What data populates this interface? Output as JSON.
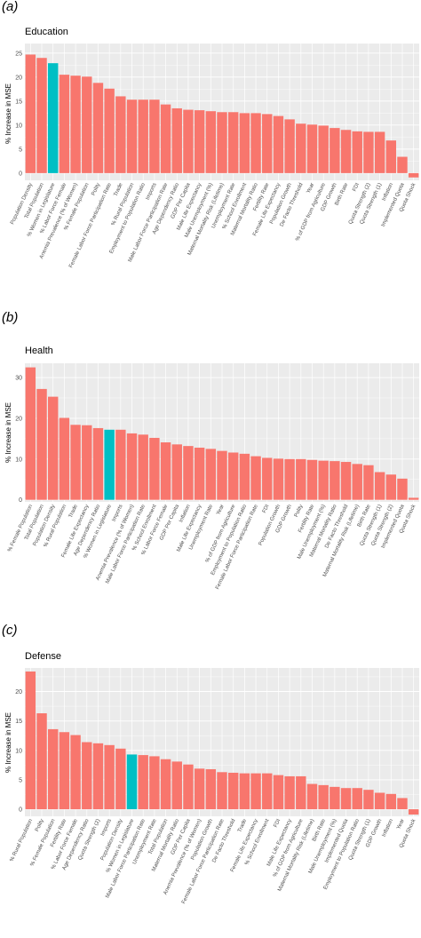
{
  "colors": {
    "bar": "#F8766D",
    "highlight": "#00BFC4",
    "panel_bg": "#EBEBEB",
    "grid": "#FFFFFF",
    "text": "#4D4D4D"
  },
  "chart_data": [
    {
      "type": "bar",
      "panel_tag": "(a)",
      "title": "Education",
      "ylabel": "% Increase in MSE",
      "ylim": [
        -1.5,
        27
      ],
      "yticks": [
        0,
        5,
        10,
        15,
        20,
        25
      ],
      "grid": true,
      "highlight": "% Women in Legislature",
      "categories": [
        "Population Density",
        "Total Population",
        "% Women in Legislature",
        "% Labor Force Female",
        "Anemia Prevalence (% of Women)",
        "% Female Population",
        "Polity",
        "Female Labor Force Participation Rate",
        "Trade",
        "% Rural Population",
        "Employment to Population Ratio",
        "Imports",
        "Male Labor Force Participation Rate",
        "Age Dependency Ratio",
        "GDP Per Capita",
        "Male Life Expectancy",
        "Male Unemployment (%)",
        "Maternal Mortality Risk (Lifetime)",
        "Unemployment Rate",
        "% School Enrollment",
        "Maternal Mortality Ratio",
        "Fertility Rate",
        "Female Life Expectancy",
        "Population Growth",
        "De Facto Threshold",
        "Year",
        "% of GDP from Agriculture",
        "GDP Growth",
        "Birth Rate",
        "FDI",
        "Quota Strength (2)",
        "Quota Strength (1)",
        "Inflation",
        "Implemented Quota",
        "Quota Shock"
      ],
      "values": [
        24.7,
        24.0,
        22.9,
        20.5,
        20.3,
        20.1,
        18.8,
        17.6,
        16.0,
        15.3,
        15.3,
        15.3,
        14.3,
        13.5,
        13.2,
        13.1,
        12.9,
        12.7,
        12.7,
        12.5,
        12.5,
        12.3,
        11.9,
        11.2,
        10.3,
        10.1,
        9.9,
        9.4,
        9.0,
        8.7,
        8.6,
        8.6,
        6.8,
        3.4,
        -0.9
      ]
    },
    {
      "type": "bar",
      "panel_tag": "(b)",
      "title": "Health",
      "ylabel": "% Increase in MSE",
      "ylim": [
        -0.5,
        33.5
      ],
      "yticks": [
        0,
        10,
        20,
        30
      ],
      "grid": true,
      "highlight": "% Women in Legislature",
      "categories": [
        "% Female Population",
        "Total Population",
        "Population Density",
        "% Rural Population",
        "Trade",
        "Female Life Expectancy",
        "Age Dependency Ratio",
        "% Women in Legislature",
        "Imports",
        "Anemia Prevalence (% of Women)",
        "Male Labor Force Participation Rate",
        "% School Enrollment",
        "% Labor Force Female",
        "GDP Per Capita",
        "Inflation",
        "Male Life Expectancy",
        "Unemployment Rate",
        "Year",
        "% of GDP from Agriculture",
        "Employment to Population Ratio",
        "Female Labor Force Participation Rate",
        "FDI",
        "Population Growth",
        "GDP Growth",
        "Polity",
        "Fertility Rate",
        "Male Unemployment (%)",
        "Maternal Mortality Ratio",
        "De Facto Threshold",
        "Maternal Mortality Risk (Lifetime)",
        "Birth Rate",
        "Quota Strength (1)",
        "Quota Strength (2)",
        "Implemented Quota",
        "Quota Shock"
      ],
      "values": [
        32.5,
        27.2,
        25.3,
        20.1,
        18.4,
        18.3,
        17.6,
        17.2,
        17.2,
        16.3,
        16.0,
        15.2,
        14.1,
        13.6,
        13.2,
        12.8,
        12.5,
        12.0,
        11.6,
        11.3,
        10.7,
        10.3,
        10.1,
        10.0,
        10.0,
        9.8,
        9.6,
        9.5,
        9.3,
        8.8,
        8.5,
        6.8,
        6.2,
        5.2,
        0.5
      ]
    },
    {
      "type": "bar",
      "panel_tag": "(c)",
      "title": "Defense",
      "ylabel": "% Increase in MSE",
      "ylim": [
        -1.2,
        24
      ],
      "yticks": [
        0,
        5,
        10,
        15,
        20
      ],
      "grid": true,
      "highlight": "% Women in Legislature",
      "categories": [
        "% Rural Population",
        "Polity",
        "% Female Population",
        "Fertility Rate",
        "% Labor Force Female",
        "Age Dependency Ratio",
        "Quota Strength (2)",
        "Imports",
        "Population Density",
        "% Women in Legislature",
        "Male Labor Force Participation Rate",
        "Unemployment Rate",
        "Total Population",
        "Maternal Mortality Ratio",
        "GDP Per Capita",
        "Anemia Prevalence (% of Women)",
        "Population Growth",
        "Female Labor Force Participation Rate",
        "De Facto Threshold",
        "Trade",
        "Female Life Expectancy",
        "% School Enrollment",
        "FDI",
        "Male Life Expectancy",
        "% of GDP from Agriculture",
        "Maternal Mortality Risk (Lifetime)",
        "Birth Rate",
        "Male Unemployment (%)",
        "Implemented Quota",
        "Employment to Population Ratio",
        "Quota Strength (1)",
        "GDP Growth",
        "Inflation",
        "Year",
        "Quota Shock"
      ],
      "values": [
        23.4,
        16.3,
        13.6,
        13.1,
        12.6,
        11.4,
        11.2,
        10.9,
        10.3,
        9.3,
        9.2,
        9.0,
        8.5,
        8.1,
        7.6,
        6.9,
        6.8,
        6.3,
        6.2,
        6.1,
        6.1,
        6.1,
        5.8,
        5.6,
        5.6,
        4.3,
        4.1,
        3.8,
        3.6,
        3.6,
        3.3,
        2.8,
        2.6,
        1.9,
        -0.9
      ]
    }
  ]
}
